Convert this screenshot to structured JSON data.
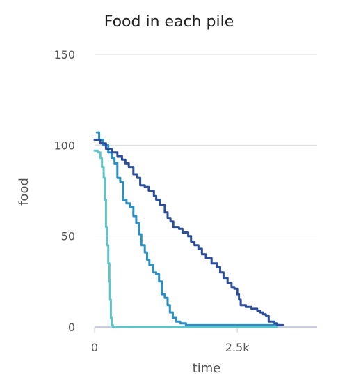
{
  "chart_data": {
    "type": "line",
    "title": "Food in each pile",
    "xlabel": "time",
    "ylabel": "food",
    "xlim": [
      0,
      3900
    ],
    "ylim": [
      0,
      150
    ],
    "x_ticks": [
      0,
      2500
    ],
    "x_tick_labels": [
      "0",
      "2.5k"
    ],
    "y_ticks": [
      0,
      50,
      100,
      150
    ],
    "y_tick_labels": [
      "0",
      "50",
      "100",
      "150"
    ],
    "grid": true,
    "legend": "none",
    "series": [
      {
        "color": "#5bc4c9",
        "points": [
          [
            0,
            97
          ],
          [
            60,
            96
          ],
          [
            100,
            93
          ],
          [
            130,
            88
          ],
          [
            160,
            82
          ],
          [
            180,
            70
          ],
          [
            200,
            55
          ],
          [
            220,
            45
          ],
          [
            240,
            35
          ],
          [
            260,
            25
          ],
          [
            270,
            15
          ],
          [
            285,
            5
          ],
          [
            300,
            1
          ],
          [
            320,
            0
          ],
          [
            3200,
            0
          ]
        ]
      },
      {
        "color": "#2b8fc4",
        "points": [
          [
            40,
            107
          ],
          [
            80,
            103
          ],
          [
            150,
            100
          ],
          [
            240,
            96
          ],
          [
            300,
            93
          ],
          [
            350,
            90
          ],
          [
            400,
            82
          ],
          [
            450,
            80
          ],
          [
            500,
            70
          ],
          [
            560,
            68
          ],
          [
            620,
            66
          ],
          [
            680,
            61
          ],
          [
            730,
            57
          ],
          [
            780,
            51
          ],
          [
            820,
            45
          ],
          [
            880,
            41
          ],
          [
            920,
            37
          ],
          [
            960,
            34
          ],
          [
            1030,
            30
          ],
          [
            1080,
            29
          ],
          [
            1130,
            25
          ],
          [
            1180,
            18
          ],
          [
            1230,
            16
          ],
          [
            1280,
            12
          ],
          [
            1320,
            8
          ],
          [
            1370,
            5
          ],
          [
            1430,
            3
          ],
          [
            1500,
            2
          ],
          [
            1600,
            1
          ],
          [
            1700,
            1
          ],
          [
            3250,
            1
          ]
        ]
      },
      {
        "color": "#2a4d9c",
        "points": [
          [
            0,
            103
          ],
          [
            100,
            101
          ],
          [
            200,
            98
          ],
          [
            300,
            96
          ],
          [
            400,
            94
          ],
          [
            480,
            92
          ],
          [
            540,
            90
          ],
          [
            600,
            88
          ],
          [
            680,
            84
          ],
          [
            750,
            82
          ],
          [
            800,
            78
          ],
          [
            880,
            77
          ],
          [
            950,
            75
          ],
          [
            1040,
            72
          ],
          [
            1080,
            70
          ],
          [
            1150,
            67
          ],
          [
            1230,
            63
          ],
          [
            1280,
            60
          ],
          [
            1330,
            58
          ],
          [
            1380,
            55
          ],
          [
            1480,
            54
          ],
          [
            1540,
            52
          ],
          [
            1640,
            50
          ],
          [
            1690,
            47
          ],
          [
            1750,
            45
          ],
          [
            1820,
            43
          ],
          [
            1880,
            40
          ],
          [
            1950,
            38
          ],
          [
            2050,
            35
          ],
          [
            2150,
            33
          ],
          [
            2200,
            30
          ],
          [
            2260,
            27
          ],
          [
            2330,
            24
          ],
          [
            2400,
            22
          ],
          [
            2450,
            21
          ],
          [
            2500,
            18
          ],
          [
            2530,
            15
          ],
          [
            2560,
            12
          ],
          [
            2650,
            11
          ],
          [
            2750,
            10
          ],
          [
            2850,
            9
          ],
          [
            2900,
            8
          ],
          [
            2950,
            7
          ],
          [
            3000,
            6
          ],
          [
            3050,
            3
          ],
          [
            3150,
            2
          ],
          [
            3200,
            1
          ],
          [
            3300,
            1
          ]
        ]
      }
    ]
  }
}
